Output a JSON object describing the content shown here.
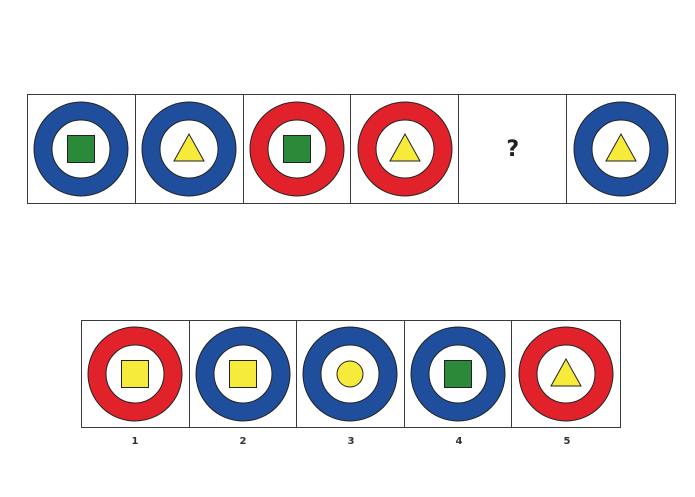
{
  "colors": {
    "blue": "#1f4e9c",
    "red": "#e2222a",
    "green": "#2a8a3a",
    "yellow": "#f6ea3a"
  },
  "sequence": [
    {
      "ring": "blue",
      "shape": "square",
      "shape_color": "green"
    },
    {
      "ring": "blue",
      "shape": "triangle",
      "shape_color": "yellow"
    },
    {
      "ring": "red",
      "shape": "square",
      "shape_color": "green"
    },
    {
      "ring": "red",
      "shape": "triangle",
      "shape_color": "yellow"
    },
    {
      "missing": true,
      "text": "?"
    },
    {
      "ring": "blue",
      "shape": "triangle",
      "shape_color": "yellow"
    }
  ],
  "options": [
    {
      "label": "1",
      "ring": "red",
      "shape": "square",
      "shape_color": "yellow"
    },
    {
      "label": "2",
      "ring": "blue",
      "shape": "square",
      "shape_color": "yellow"
    },
    {
      "label": "3",
      "ring": "blue",
      "shape": "circle",
      "shape_color": "yellow"
    },
    {
      "label": "4",
      "ring": "blue",
      "shape": "square",
      "shape_color": "green"
    },
    {
      "label": "5",
      "ring": "red",
      "shape": "triangle",
      "shape_color": "yellow"
    }
  ]
}
